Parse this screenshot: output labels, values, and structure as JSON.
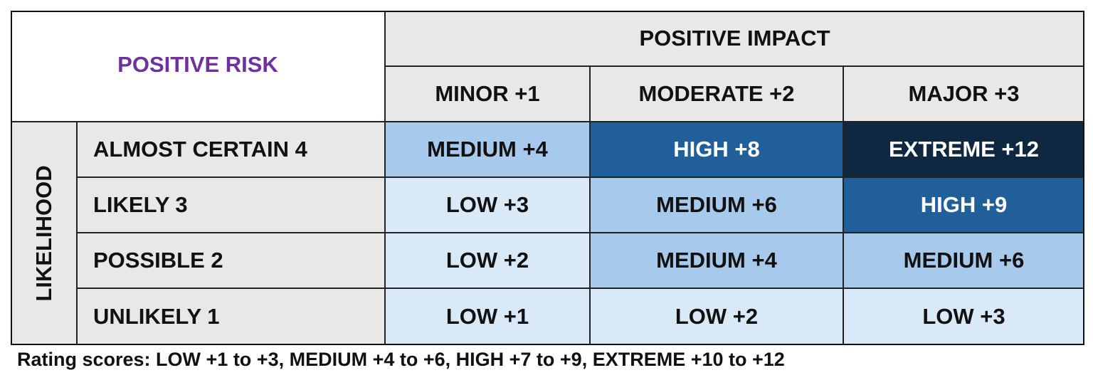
{
  "corner": "POSITIVE RISK",
  "impact_header": "POSITIVE IMPACT",
  "impact_levels": [
    "MINOR +1",
    "MODERATE +2",
    "MAJOR +3"
  ],
  "likelihood_header": "LIKELIHOOD",
  "rows": [
    {
      "label": "ALMOST CERTAIN 4",
      "cells": [
        "MEDIUM +4",
        "HIGH +8",
        "EXTREME +12"
      ],
      "fills": [
        "#a6c9ec",
        "#215f9a",
        "#0e2841"
      ]
    },
    {
      "label": "LIKELY 3",
      "cells": [
        "LOW +3",
        "MEDIUM +6",
        "HIGH +9"
      ],
      "fills": [
        "#dae9f8",
        "#a6c9ec",
        "#215f9a"
      ]
    },
    {
      "label": "POSSIBLE 2",
      "cells": [
        "LOW +2",
        "MEDIUM +4",
        "MEDIUM +6"
      ],
      "fills": [
        "#dae9f8",
        "#a6c9ec",
        "#a6c9ec"
      ]
    },
    {
      "label": "UNLIKELY 1",
      "cells": [
        "LOW +1",
        "LOW +2",
        "LOW +3"
      ],
      "fills": [
        "#dae9f8",
        "#dae9f8",
        "#dae9f8"
      ]
    }
  ],
  "footnote": "Rating scores: LOW +1 to +3, MEDIUM +4 to +6, HIGH +7 to +9, EXTREME +10 to +12"
}
